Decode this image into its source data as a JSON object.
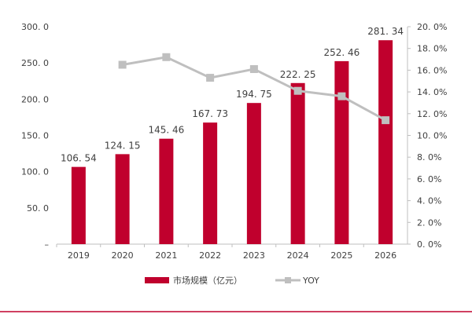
{
  "chart_data": {
    "type": "bar+line",
    "categories": [
      "2019",
      "2020",
      "2021",
      "2022",
      "2023",
      "2024",
      "2025",
      "2026"
    ],
    "series": [
      {
        "name": "市场规模（亿元）",
        "type": "bar",
        "axis": "left",
        "values": [
          106.54,
          124.15,
          145.46,
          167.73,
          194.75,
          222.25,
          252.46,
          281.34
        ],
        "labels": [
          "106.54",
          "124.15",
          "145.46",
          "167.73",
          "194.75",
          "222.25",
          "252.46",
          "281.34"
        ],
        "color": "#c0002d"
      },
      {
        "name": "YOY",
        "type": "line",
        "axis": "right",
        "values": [
          null,
          16.5,
          17.2,
          15.3,
          16.1,
          14.1,
          13.6,
          11.4
        ],
        "color": "#bfbfbf"
      }
    ],
    "left_axis": {
      "range": [
        0,
        300
      ],
      "ticks": [
        "–",
        "50.0",
        "100.0",
        "150.0",
        "200.0",
        "250.0",
        "300.0"
      ]
    },
    "right_axis": {
      "range": [
        0,
        20
      ],
      "ticks": [
        "0.0%",
        "2.0%",
        "4.0%",
        "6.0%",
        "8.0%",
        "10.0%",
        "12.0%",
        "14.0%",
        "16.0%",
        "18.0%",
        "20.0%"
      ]
    },
    "grid": false,
    "legend": "bottom"
  }
}
